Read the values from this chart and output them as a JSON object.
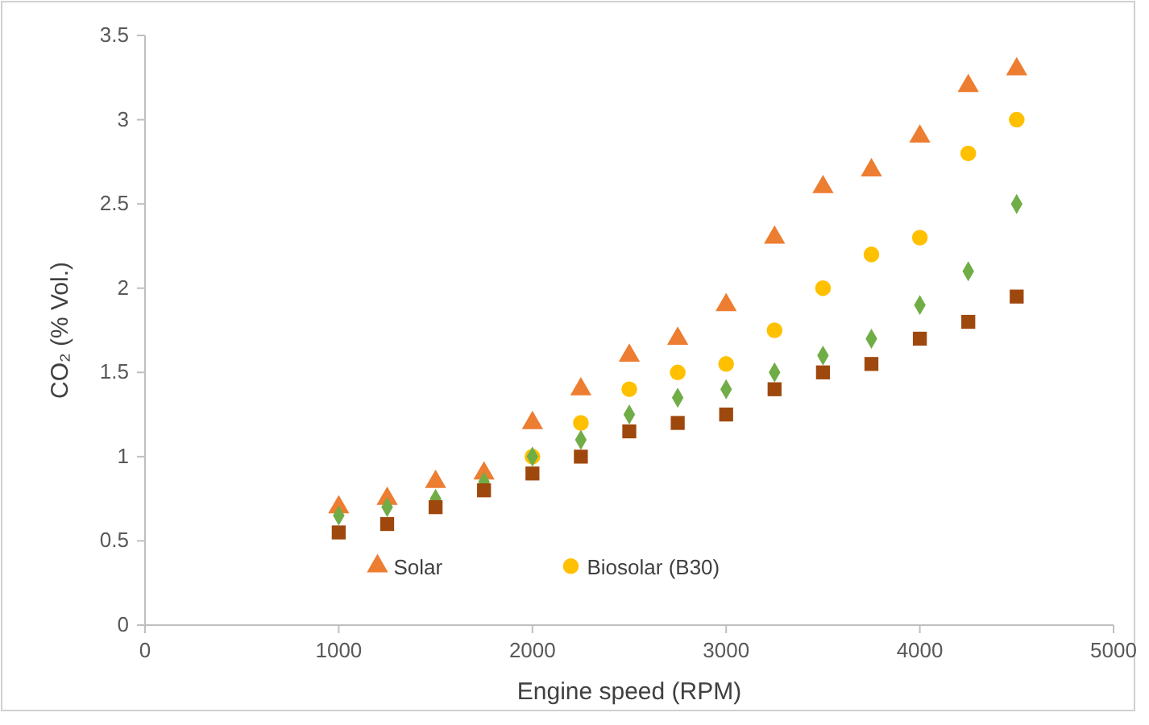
{
  "chart_data": {
    "type": "scatter",
    "xlabel": "Engine speed (RPM)",
    "ylabel": "CO₂ (% Vol.)",
    "x": [
      1000,
      1250,
      1500,
      1750,
      2000,
      2250,
      2500,
      2750,
      3000,
      3250,
      3500,
      3750,
      4000,
      4250,
      4500
    ],
    "series": [
      {
        "name": "Solar",
        "color": "#ed7d31",
        "marker": "triangle",
        "values": [
          0.7,
          0.75,
          0.85,
          0.9,
          1.2,
          1.4,
          1.6,
          1.7,
          1.9,
          2.3,
          2.6,
          2.7,
          2.9,
          3.2,
          3.3
        ]
      },
      {
        "name": "Biosolar (B30)",
        "color": "#ffc000",
        "marker": "circle",
        "values": [
          null,
          null,
          null,
          null,
          1.0,
          1.2,
          1.4,
          1.5,
          1.55,
          1.75,
          2.0,
          2.2,
          2.3,
          2.8,
          3.0
        ]
      },
      {
        "color": "#70ad47",
        "marker": "diamond",
        "values": [
          0.65,
          0.7,
          0.75,
          0.85,
          1.0,
          1.1,
          1.25,
          1.35,
          1.4,
          1.5,
          1.6,
          1.7,
          1.9,
          2.1,
          2.5
        ]
      },
      {
        "color": "#9e480e",
        "marker": "square",
        "values": [
          0.55,
          0.6,
          0.7,
          0.8,
          0.9,
          1.0,
          1.15,
          1.2,
          1.25,
          1.4,
          1.5,
          1.55,
          1.7,
          1.8,
          1.95
        ]
      }
    ],
    "xlim": [
      0,
      5000
    ],
    "xticks": [
      0,
      1000,
      2000,
      3000,
      4000,
      5000
    ],
    "ylim": [
      0,
      3.5
    ],
    "yticks": [
      0,
      0.5,
      1,
      1.5,
      2,
      2.5,
      3,
      3.5
    ],
    "grid": false,
    "legend": "bottom"
  }
}
